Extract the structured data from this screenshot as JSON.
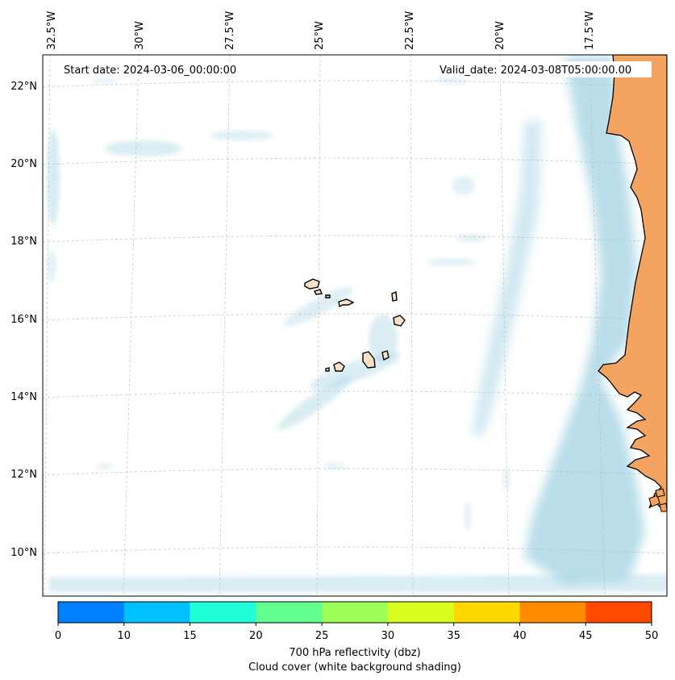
{
  "map": {
    "start_date": "Start date: 2024-03-06_00:00:00",
    "valid_date": "Valid_date: 2024-03-08T05:00:00.00",
    "lon_labels": [
      "32.5°W",
      "30°W",
      "27.5°W",
      "25°W",
      "22.5°W",
      "20°W",
      "17.5°W"
    ],
    "lat_labels": [
      "22°N",
      "20°N",
      "18°N",
      "16°N",
      "14°N",
      "12°N",
      "10°N"
    ],
    "land_color": "#f4a460",
    "island_color": "#fde0c8",
    "cloud_color": "#add8e6",
    "grid": true
  },
  "colorbar": {
    "ticks": [
      "0",
      "10",
      "15",
      "20",
      "25",
      "30",
      "35",
      "40",
      "45",
      "50"
    ],
    "colors": [
      "#007fff",
      "#00c0ff",
      "#20ffd8",
      "#60ff90",
      "#9cff58",
      "#d8ff20",
      "#ffd800",
      "#ff8c00",
      "#ff4800"
    ],
    "label_line1": "700 hPa reflectivity (dbz)",
    "label_line2": "Cloud cover (white background shading)"
  }
}
